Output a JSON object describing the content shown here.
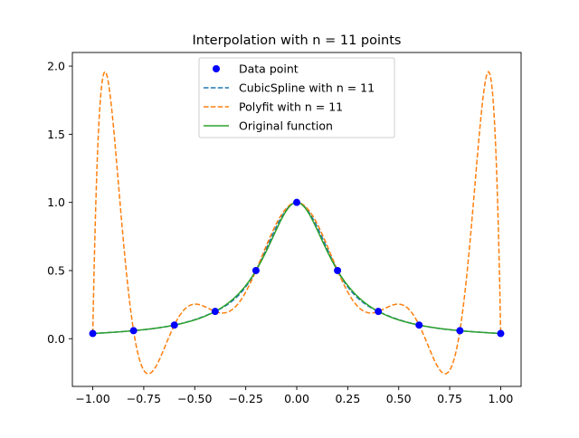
{
  "chart_data": {
    "type": "line",
    "title": "Interpolation with n = 11 points",
    "xlabel": "",
    "ylabel": "",
    "xlim": [
      -1.1,
      1.1
    ],
    "ylim": [
      -0.35,
      2.1
    ],
    "xticks": [
      -1.0,
      -0.75,
      -0.5,
      -0.25,
      0.0,
      0.25,
      0.5,
      0.75,
      1.0
    ],
    "xtick_labels": [
      "−1.00",
      "−0.75",
      "−0.50",
      "−0.25",
      "0.00",
      "0.25",
      "0.50",
      "0.75",
      "1.00"
    ],
    "yticks": [
      0.0,
      0.5,
      1.0,
      1.5,
      2.0
    ],
    "ytick_labels": [
      "0.0",
      "0.5",
      "1.0",
      "1.5",
      "2.0"
    ],
    "grid": false,
    "legend_position": "top-center",
    "x": [
      -1.0,
      -0.8,
      -0.6,
      -0.4,
      -0.2,
      0.0,
      0.2,
      0.4,
      0.6,
      0.8,
      1.0
    ],
    "series": [
      {
        "name": "Data point",
        "kind": "scatter",
        "color": "#0000ff",
        "values": [
          0.038,
          0.059,
          0.1,
          0.2,
          0.5,
          1.0,
          0.5,
          0.2,
          0.1,
          0.059,
          0.038
        ]
      },
      {
        "name": "CubicSpline with n = 11",
        "kind": "line",
        "style": "dashed",
        "color": "#1f77b4",
        "values": [
          0.038,
          0.059,
          0.1,
          0.2,
          0.5,
          1.0,
          0.5,
          0.2,
          0.1,
          0.059,
          0.038
        ]
      },
      {
        "name": "Polyfit with n = 11",
        "kind": "line",
        "style": "dashed",
        "color": "#ff7f0e",
        "values": [
          0.038,
          0.059,
          0.1,
          0.2,
          0.5,
          1.0,
          0.5,
          0.2,
          0.1,
          0.059,
          0.038
        ]
      },
      {
        "name": "Original function",
        "kind": "line",
        "style": "solid",
        "color": "#2ca02c",
        "values": [
          0.038,
          0.059,
          0.1,
          0.2,
          0.5,
          1.0,
          0.5,
          0.2,
          0.1,
          0.059,
          0.038
        ]
      }
    ]
  }
}
